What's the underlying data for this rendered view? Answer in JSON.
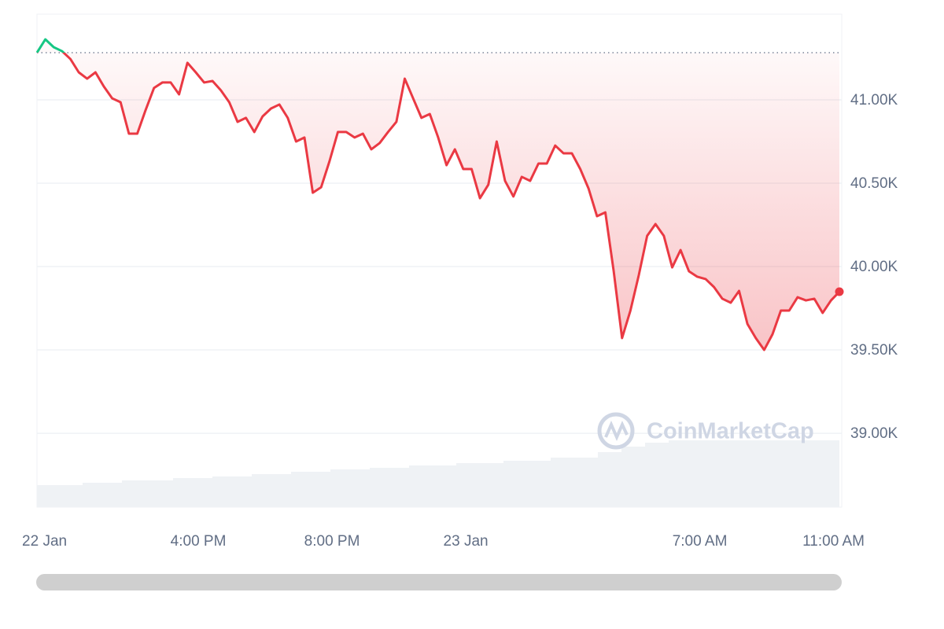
{
  "chart_data": {
    "type": "line",
    "watermark": "CoinMarketCap",
    "series": [
      {
        "color": "#ea3943",
        "up_color": "#16c784",
        "values": [
          41283,
          41363,
          41316,
          41292,
          41245,
          41165,
          41127,
          41165,
          41080,
          41009,
          40986,
          40797,
          40797,
          40939,
          41071,
          41104,
          41104,
          41033,
          41222,
          41165,
          41104,
          41113,
          41057,
          40986,
          40868,
          40892,
          40807,
          40901,
          40948,
          40972,
          40892,
          40750,
          40774,
          40443,
          40476,
          40632,
          40807,
          40807,
          40774,
          40797,
          40703,
          40741,
          40807,
          40868,
          41127,
          41009,
          40892,
          40915,
          40774,
          40608,
          40703,
          40585,
          40585,
          40410,
          40491,
          40750,
          40514,
          40420,
          40538,
          40514,
          40618,
          40618,
          40726,
          40679,
          40679,
          40585,
          40467,
          40302,
          40325,
          39972,
          39571,
          39736,
          39948,
          40184,
          40255,
          40184,
          39995,
          40099,
          39972,
          39939,
          39925,
          39877,
          39807,
          39783,
          39854,
          39656,
          39571,
          39500,
          39594,
          39736,
          39736,
          39816,
          39797,
          39807,
          39722,
          39797,
          39849
        ]
      }
    ],
    "xlim": [
      0,
      96
    ],
    "xticks": [
      {
        "value": 0.9,
        "label": "22 Jan"
      },
      {
        "value": 19.3,
        "label": "4:00 PM"
      },
      {
        "value": 35.3,
        "label": "8:00 PM"
      },
      {
        "value": 51.3,
        "label": "23 Jan"
      },
      {
        "value": 79.3,
        "label": "7:00 AM"
      },
      {
        "value": 95.3,
        "label": "11:00 AM"
      }
    ],
    "ylim": [
      38557,
      41514
    ],
    "yticks": [
      {
        "value": 41000,
        "label": "41.00K"
      },
      {
        "value": 40500,
        "label": "40.50K"
      },
      {
        "value": 40000,
        "label": "40.00K"
      },
      {
        "value": 39500,
        "label": "39.50K"
      },
      {
        "value": 39000,
        "label": "39.00K"
      }
    ],
    "grid": true
  }
}
